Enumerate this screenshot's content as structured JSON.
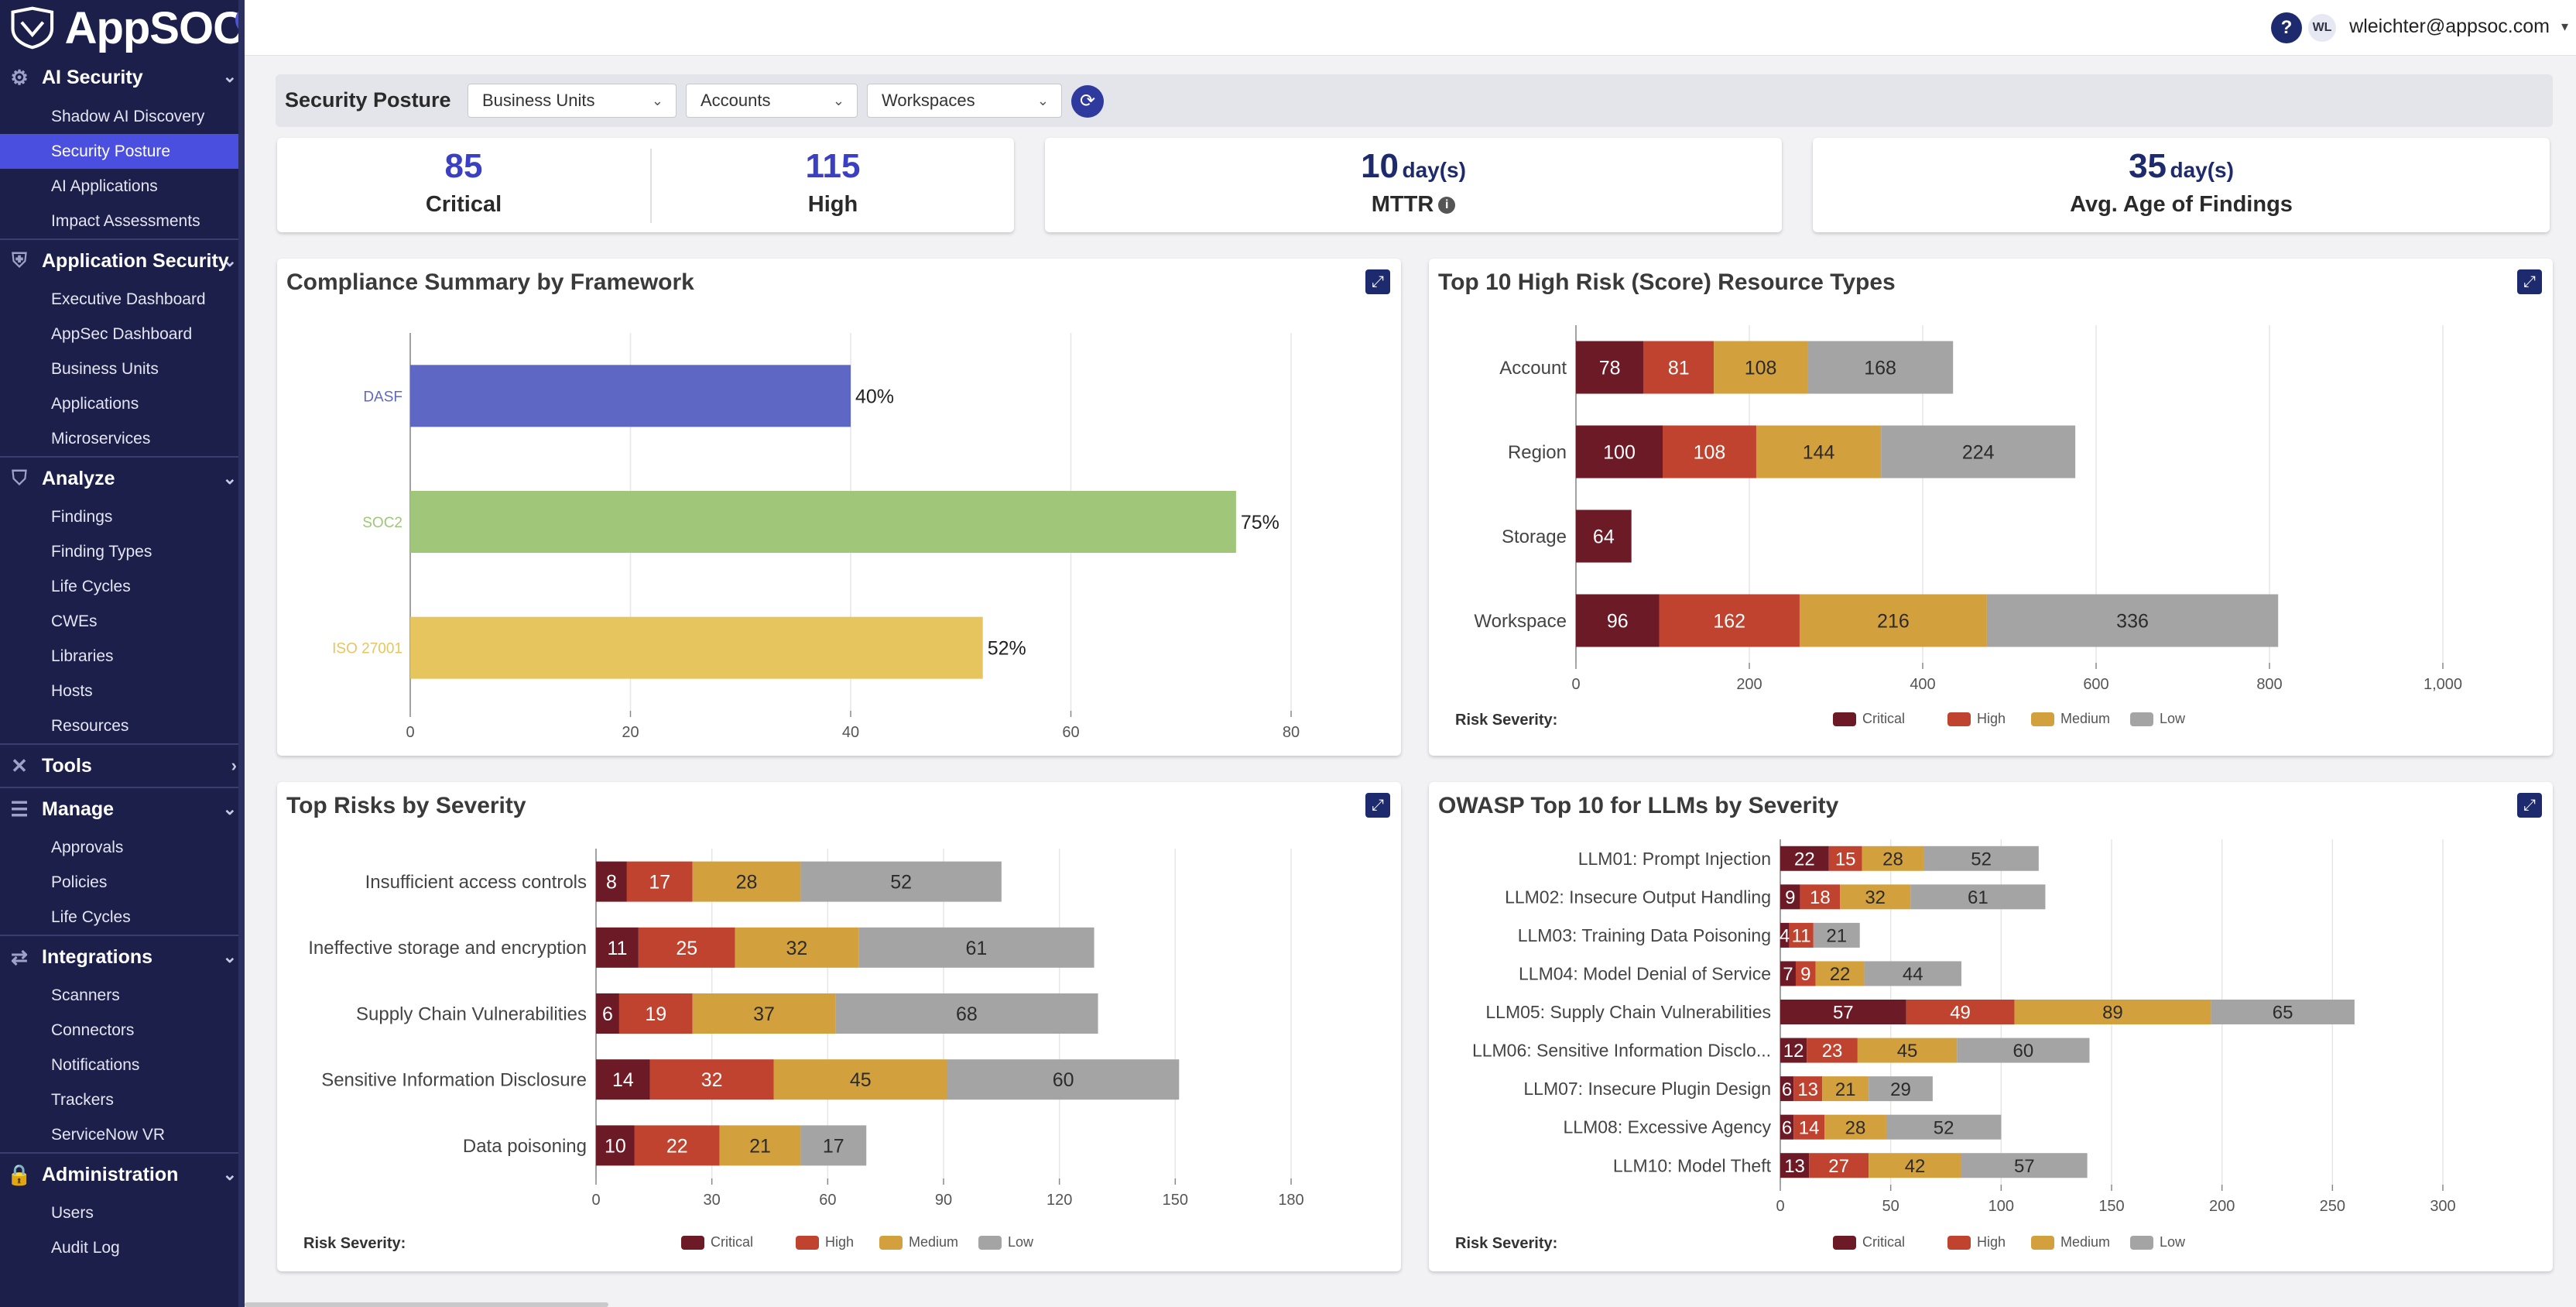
{
  "app": {
    "brand": "AppSOC",
    "user": "wleichter@appsoc.com",
    "user_initials": "WL",
    "help_glyph": "?",
    "colors": {
      "sidebar_bg": "#1c1f4a",
      "active": "#4a4fe0",
      "accent": "#3b3fc2"
    }
  },
  "sidebar": {
    "sections": [
      {
        "label": "AI Security",
        "icon": "brain-chip-icon",
        "items": [
          {
            "label": "Shadow AI Discovery"
          },
          {
            "label": "Security Posture",
            "active": true
          },
          {
            "label": "AI Applications"
          },
          {
            "label": "Impact Assessments"
          }
        ]
      },
      {
        "label": "Application Security",
        "icon": "shield-gear-icon",
        "items": [
          {
            "label": "Executive Dashboard"
          },
          {
            "label": "AppSec Dashboard"
          },
          {
            "label": "Business Units"
          },
          {
            "label": "Applications"
          },
          {
            "label": "Microservices"
          }
        ]
      },
      {
        "label": "Analyze",
        "icon": "shield-check-icon",
        "items": [
          {
            "label": "Findings"
          },
          {
            "label": "Finding Types"
          },
          {
            "label": "Life Cycles"
          },
          {
            "label": "CWEs"
          },
          {
            "label": "Libraries"
          },
          {
            "label": "Hosts"
          },
          {
            "label": "Resources"
          }
        ]
      },
      {
        "label": "Tools",
        "icon": "tools-icon",
        "collapsed": true,
        "items": []
      },
      {
        "label": "Manage",
        "icon": "checklist-icon",
        "items": [
          {
            "label": "Approvals"
          },
          {
            "label": "Policies"
          },
          {
            "label": "Life Cycles"
          }
        ]
      },
      {
        "label": "Integrations",
        "icon": "integrations-icon",
        "items": [
          {
            "label": "Scanners"
          },
          {
            "label": "Connectors"
          },
          {
            "label": "Notifications"
          },
          {
            "label": "Trackers"
          },
          {
            "label": "ServiceNow VR"
          }
        ]
      },
      {
        "label": "Administration",
        "icon": "lock-icon",
        "items": [
          {
            "label": "Users"
          },
          {
            "label": "Audit Log"
          }
        ]
      }
    ]
  },
  "filters": {
    "title": "Security Posture",
    "business_units": "Business Units",
    "accounts": "Accounts",
    "workspaces": "Workspaces"
  },
  "kpis": {
    "critical": {
      "value": "85",
      "label": "Critical"
    },
    "high": {
      "value": "115",
      "label": "High"
    },
    "mttr": {
      "value": "10",
      "unit": "day(s)",
      "label": "MTTR"
    },
    "age": {
      "value": "35",
      "unit": "day(s)",
      "label": "Avg. Age of Findings"
    }
  },
  "severity_colors": {
    "Critical": "#6b1a26",
    "High": "#c0432f",
    "Medium": "#d3a03e",
    "Low": "#a4a4a4"
  },
  "legend_title": "Risk Severity:",
  "chart_data": [
    {
      "id": "compliance",
      "type": "bar",
      "orientation": "horizontal",
      "title": "Compliance Summary by Framework",
      "categories": [
        "DASF",
        "SOC2",
        "ISO 27001"
      ],
      "values": [
        40,
        75,
        52
      ],
      "value_labels": [
        "40%",
        "75%",
        "52%"
      ],
      "colors": [
        "#5f67c4",
        "#9fc679",
        "#e7c55e"
      ],
      "xlim": [
        0,
        80
      ],
      "xticks": [
        0,
        20,
        40,
        60,
        80
      ],
      "grid": true
    },
    {
      "id": "resource_types",
      "type": "bar",
      "stacked": true,
      "orientation": "horizontal",
      "title": "Top 10 High Risk (Score) Resource Types",
      "categories": [
        "Account",
        "Region",
        "Storage",
        "Workspace"
      ],
      "series": [
        {
          "name": "Critical",
          "values": [
            78,
            100,
            64,
            96
          ]
        },
        {
          "name": "High",
          "values": [
            81,
            108,
            0,
            162
          ]
        },
        {
          "name": "Medium",
          "values": [
            108,
            144,
            0,
            216
          ]
        },
        {
          "name": "Low",
          "values": [
            168,
            224,
            0,
            336
          ]
        }
      ],
      "xlim": [
        0,
        1000
      ],
      "xticks": [
        0,
        200,
        400,
        600,
        800,
        1000
      ],
      "xtick_labels": [
        "0",
        "200",
        "400",
        "600",
        "800",
        "1,000"
      ],
      "legend": "bottom"
    },
    {
      "id": "top_risks",
      "type": "bar",
      "stacked": true,
      "orientation": "horizontal",
      "title": "Top Risks by Severity",
      "categories": [
        "Insufficient access controls",
        "Ineffective storage and encryption",
        "Supply Chain Vulnerabilities",
        "Sensitive Information Disclosure",
        "Data poisoning"
      ],
      "series": [
        {
          "name": "Critical",
          "values": [
            8,
            11,
            6,
            14,
            10
          ]
        },
        {
          "name": "High",
          "values": [
            17,
            25,
            19,
            32,
            22
          ]
        },
        {
          "name": "Medium",
          "values": [
            28,
            32,
            37,
            45,
            21
          ]
        },
        {
          "name": "Low",
          "values": [
            52,
            61,
            68,
            60,
            17
          ]
        }
      ],
      "xlim": [
        0,
        180
      ],
      "xticks": [
        0,
        30,
        60,
        90,
        120,
        150,
        180
      ],
      "xtick_labels": [
        "0",
        "30",
        "60",
        "90",
        "120",
        "150",
        "180"
      ],
      "legend": "bottom"
    },
    {
      "id": "owasp",
      "type": "bar",
      "stacked": true,
      "orientation": "horizontal",
      "title": "OWASP Top 10 for LLMs by Severity",
      "categories": [
        "LLM01: Prompt Injection",
        "LLM02: Insecure Output Handling",
        "LLM03: Training Data Poisoning",
        "LLM04: Model Denial of Service",
        "LLM05: Supply Chain Vulnerabilities",
        "LLM06: Sensitive Information Disclo...",
        "LLM07: Insecure Plugin Design",
        "LLM08: Excessive Agency",
        "LLM10: Model Theft"
      ],
      "series": [
        {
          "name": "Critical",
          "values": [
            22,
            9,
            4,
            7,
            57,
            12,
            6,
            6,
            13
          ]
        },
        {
          "name": "High",
          "values": [
            15,
            18,
            11,
            9,
            49,
            23,
            13,
            14,
            27
          ]
        },
        {
          "name": "Medium",
          "values": [
            28,
            32,
            0,
            22,
            89,
            45,
            21,
            28,
            42
          ]
        },
        {
          "name": "Low",
          "values": [
            52,
            61,
            21,
            44,
            65,
            60,
            29,
            52,
            57
          ]
        }
      ],
      "xlim": [
        0,
        300
      ],
      "xticks": [
        0,
        50,
        100,
        150,
        200,
        250,
        300
      ],
      "xtick_labels": [
        "0",
        "50",
        "100",
        "150",
        "200",
        "250",
        "300"
      ],
      "legend": "bottom"
    }
  ]
}
